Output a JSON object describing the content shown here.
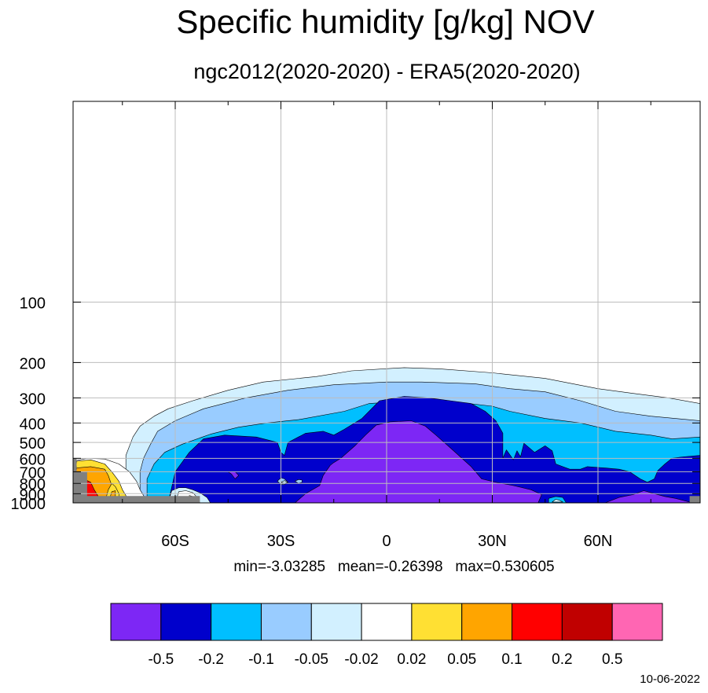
{
  "chart_data": {
    "type": "contour",
    "title": "Specific humidity [g/kg] NOV",
    "subtitle": "ngc2012(2020-2020) - ERA5(2020-2020)",
    "xlabel": "",
    "ylabel": "",
    "x_ticks": [
      {
        "value": -60,
        "label": "60S"
      },
      {
        "value": -30,
        "label": "30S"
      },
      {
        "value": 0,
        "label": "0"
      },
      {
        "value": 30,
        "label": "30N"
      },
      {
        "value": 60,
        "label": "60N"
      }
    ],
    "y_ticks": [
      100,
      200,
      300,
      400,
      500,
      600,
      700,
      800,
      900,
      1000
    ],
    "xlim": [
      -89,
      89
    ],
    "ylim": [
      1000,
      10
    ],
    "grid": true,
    "contour_levels": [
      -0.5,
      -0.2,
      -0.1,
      -0.05,
      -0.02,
      0.02,
      0.05,
      0.1,
      0.2,
      0.5
    ],
    "colorbar_labels": [
      "-0.5",
      "-0.2",
      "-0.1",
      "-0.05",
      "-0.02",
      "0.02",
      "0.05",
      "0.1",
      "0.2",
      "0.5"
    ],
    "colors": [
      "#7d27f5",
      "#0000cc",
      "#00bfff",
      "#99ccff",
      "#d2f0ff",
      "#ffffff",
      "#ffe033",
      "#ffa500",
      "#ff0000",
      "#c00000",
      "#ff66b3"
    ],
    "missing_color": "#808080",
    "stats_text": "min=-3.03285   mean=-0.26398   max=0.530605",
    "min": -3.03285,
    "mean": -0.26398,
    "max": 0.530605,
    "regions": [
      {
        "level": 4,
        "pts": [
          [
            -74,
            650
          ],
          [
            -74,
            580
          ],
          [
            -72,
            470
          ],
          [
            -70,
            415
          ],
          [
            -66,
            370
          ],
          [
            -62,
            340
          ],
          [
            -55,
            310
          ],
          [
            -45,
            275
          ],
          [
            -35,
            250
          ],
          [
            -20,
            235
          ],
          [
            -10,
            220
          ],
          [
            5,
            212
          ],
          [
            15,
            215
          ],
          [
            30,
            225
          ],
          [
            45,
            240
          ],
          [
            60,
            270
          ],
          [
            70,
            285
          ],
          [
            80,
            300
          ],
          [
            89,
            320
          ],
          [
            89,
            1000
          ],
          [
            -74,
            1000
          ]
        ]
      },
      {
        "level": 3,
        "pts": [
          [
            -70,
            700
          ],
          [
            -69,
            600
          ],
          [
            -67,
            510
          ],
          [
            -65,
            440
          ],
          [
            -60,
            390
          ],
          [
            -52,
            340
          ],
          [
            -40,
            300
          ],
          [
            -28,
            275
          ],
          [
            -15,
            258
          ],
          [
            0,
            250
          ],
          [
            10,
            250
          ],
          [
            25,
            255
          ],
          [
            35,
            270
          ],
          [
            45,
            280
          ],
          [
            55,
            310
          ],
          [
            65,
            350
          ],
          [
            75,
            370
          ],
          [
            89,
            390
          ],
          [
            89,
            1000
          ],
          [
            -70,
            1000
          ]
        ]
      },
      {
        "level": 2,
        "pts": [
          [
            -68,
            760
          ],
          [
            -66,
            640
          ],
          [
            -63,
            560
          ],
          [
            -58,
            510
          ],
          [
            -50,
            455
          ],
          [
            -42,
            420
          ],
          [
            -34,
            400
          ],
          [
            -25,
            385
          ],
          [
            -12,
            350
          ],
          [
            -5,
            320
          ],
          [
            8,
            310
          ],
          [
            20,
            315
          ],
          [
            30,
            330
          ],
          [
            35,
            350
          ],
          [
            45,
            380
          ],
          [
            55,
            400
          ],
          [
            65,
            440
          ],
          [
            75,
            460
          ],
          [
            81,
            480
          ],
          [
            89,
            470
          ],
          [
            89,
            1000
          ],
          [
            -68,
            1000
          ]
        ]
      },
      {
        "level": 1,
        "pts": [
          [
            -62,
            1000
          ],
          [
            -60,
            700
          ],
          [
            -56,
            560
          ],
          [
            -52,
            480
          ],
          [
            -46,
            460
          ],
          [
            -37,
            470
          ],
          [
            -31,
            500
          ],
          [
            -30,
            560
          ],
          [
            -29,
            580
          ],
          [
            -28,
            500
          ],
          [
            -23,
            450
          ],
          [
            -18,
            440
          ],
          [
            -15,
            460
          ],
          [
            -12,
            430
          ],
          [
            -7,
            380
          ],
          [
            -2,
            310
          ],
          [
            5,
            295
          ],
          [
            12,
            300
          ],
          [
            18,
            310
          ],
          [
            24,
            320
          ],
          [
            28,
            350
          ],
          [
            31,
            390
          ],
          [
            33,
            450
          ],
          [
            33,
            600
          ],
          [
            34,
            545
          ],
          [
            36,
            610
          ],
          [
            37,
            550
          ],
          [
            38,
            590
          ],
          [
            39,
            505
          ],
          [
            42,
            560
          ],
          [
            45,
            520
          ],
          [
            47,
            550
          ],
          [
            48,
            640
          ],
          [
            50,
            660
          ],
          [
            52,
            680
          ],
          [
            55,
            680
          ],
          [
            57,
            660
          ],
          [
            62,
            670
          ],
          [
            66,
            680
          ],
          [
            69,
            700
          ],
          [
            70,
            720
          ],
          [
            72,
            760
          ],
          [
            74,
            790
          ],
          [
            76,
            760
          ],
          [
            77,
            690
          ],
          [
            79,
            640
          ],
          [
            81,
            600
          ],
          [
            84,
            590
          ],
          [
            89,
            580
          ],
          [
            89,
            1000
          ]
        ]
      },
      {
        "level": 0,
        "pts": [
          [
            -26,
            1000
          ],
          [
            -23,
            900
          ],
          [
            -19,
            820
          ],
          [
            -18,
            730
          ],
          [
            -16,
            650
          ],
          [
            -15,
            630
          ],
          [
            -13,
            600
          ],
          [
            -9,
            520
          ],
          [
            -6,
            460
          ],
          [
            -3,
            410
          ],
          [
            1,
            395
          ],
          [
            7,
            390
          ],
          [
            11,
            415
          ],
          [
            14,
            460
          ],
          [
            18,
            530
          ],
          [
            24,
            660
          ],
          [
            27,
            760
          ],
          [
            31,
            790
          ],
          [
            36,
            820
          ],
          [
            41,
            860
          ],
          [
            44,
            910
          ],
          [
            43,
            1000
          ]
        ]
      },
      {
        "level": 0,
        "pts": [
          [
            62,
            1000
          ],
          [
            66,
            940
          ],
          [
            70,
            910
          ],
          [
            73,
            870
          ],
          [
            76,
            900
          ],
          [
            79,
            930
          ],
          [
            82,
            950
          ],
          [
            86,
            990
          ],
          [
            86,
            1000
          ]
        ]
      },
      {
        "level": 0,
        "pts": [
          [
            -45,
            700
          ],
          [
            -44,
            720
          ],
          [
            -43,
            760
          ],
          [
            -42,
            730
          ],
          [
            -43,
            700
          ]
        ]
      },
      {
        "level": 2,
        "pts": [
          [
            46,
            1000
          ],
          [
            46,
            950
          ],
          [
            48,
            930
          ],
          [
            50,
            940
          ],
          [
            51,
            1000
          ]
        ]
      },
      {
        "level": 4,
        "pts": [
          [
            47,
            990
          ],
          [
            48,
            960
          ],
          [
            49,
            970
          ],
          [
            50,
            990
          ]
        ]
      },
      {
        "level": 3,
        "pts": [
          [
            -31,
            780
          ],
          [
            -30,
            750
          ],
          [
            -29,
            760
          ],
          [
            -28,
            790
          ],
          [
            -29,
            810
          ],
          [
            -30,
            810
          ]
        ]
      },
      {
        "level": 4,
        "pts": [
          [
            -30,
            790
          ],
          [
            -29,
            775
          ],
          [
            -28,
            790
          ],
          [
            -29,
            800
          ]
        ]
      },
      {
        "level": 3,
        "pts": [
          [
            -26,
            780
          ],
          [
            -25,
            765
          ],
          [
            -24,
            770
          ],
          [
            -24,
            790
          ],
          [
            -25,
            800
          ]
        ]
      },
      {
        "level": 4,
        "pts": [
          [
            -62,
            1000
          ],
          [
            -61,
            870
          ],
          [
            -59,
            840
          ],
          [
            -57,
            840
          ],
          [
            -55,
            860
          ],
          [
            -53,
            890
          ],
          [
            -51,
            940
          ],
          [
            -50,
            1000
          ]
        ]
      },
      {
        "level": 5,
        "pts": [
          [
            -60,
            1000
          ],
          [
            -59,
            880
          ],
          [
            -57,
            870
          ],
          [
            -55,
            890
          ],
          [
            -54,
            930
          ],
          [
            -53,
            1000
          ]
        ]
      },
      {
        "level": 6,
        "pts": [
          [
            -56,
            1000
          ],
          [
            -56,
            920
          ],
          [
            -54,
            940
          ],
          [
            -53,
            1000
          ]
        ]
      },
      {
        "level": 7,
        "pts": [
          [
            -55,
            1000
          ],
          [
            -55,
            960
          ],
          [
            -53,
            1000
          ]
        ]
      },
      {
        "level": 5,
        "pts": [
          [
            -89,
            1000
          ],
          [
            -89,
            620
          ],
          [
            -85,
            600
          ],
          [
            -80,
            605
          ],
          [
            -76,
            640
          ],
          [
            -73,
            700
          ],
          [
            -71,
            780
          ],
          [
            -70,
            860
          ],
          [
            -69,
            920
          ],
          [
            -68,
            1000
          ]
        ]
      },
      {
        "level": 6,
        "pts": [
          [
            -89,
            1000
          ],
          [
            -88,
            620
          ],
          [
            -84,
            610
          ],
          [
            -80,
            640
          ],
          [
            -78,
            700
          ],
          [
            -76,
            780
          ],
          [
            -75,
            860
          ],
          [
            -74,
            920
          ],
          [
            -73,
            1000
          ]
        ]
      },
      {
        "level": 7,
        "pts": [
          [
            -89,
            1000
          ],
          [
            -88,
            670
          ],
          [
            -84,
            660
          ],
          [
            -80,
            680
          ],
          [
            -79,
            730
          ],
          [
            -78,
            820
          ],
          [
            -77,
            890
          ],
          [
            -77,
            950
          ],
          [
            -76,
            1000
          ]
        ]
      },
      {
        "level": 8,
        "pts": [
          [
            -89,
            1000
          ],
          [
            -89,
            800
          ],
          [
            -86,
            760
          ],
          [
            -84,
            790
          ],
          [
            -83,
            860
          ],
          [
            -82,
            920
          ],
          [
            -81,
            1000
          ]
        ]
      },
      {
        "level": 9,
        "pts": [
          [
            -89,
            1000
          ],
          [
            -88,
            860
          ],
          [
            -86,
            880
          ],
          [
            -85,
            940
          ],
          [
            -84,
            1000
          ]
        ]
      },
      {
        "level": 6,
        "pts": [
          [
            -80,
            1000
          ],
          [
            -79,
            860
          ],
          [
            -78,
            800
          ],
          [
            -77,
            830
          ],
          [
            -76,
            900
          ],
          [
            -76,
            960
          ],
          [
            -77,
            1000
          ]
        ]
      },
      {
        "level": 7,
        "pts": [
          [
            -79,
            1000
          ],
          [
            -78,
            880
          ],
          [
            -77,
            870
          ],
          [
            -77,
            950
          ],
          [
            -77,
            1000
          ]
        ]
      },
      {
        "level": 2,
        "pts": [
          [
            -89,
            1000
          ],
          [
            -89,
            630
          ],
          [
            -88,
            660
          ],
          [
            -89,
            700
          ]
        ]
      }
    ],
    "missing": [
      [
        [
          -89,
          1000
        ],
        [
          -89,
          600
        ],
        [
          -88,
          600
        ],
        [
          -88,
          700
        ],
        [
          -85,
          700
        ],
        [
          -85,
          925
        ],
        [
          -53,
          925
        ],
        [
          -53,
          1000
        ]
      ],
      [
        [
          86,
          1000
        ],
        [
          86,
          925
        ],
        [
          89,
          925
        ],
        [
          89,
          1000
        ]
      ]
    ]
  }
}
